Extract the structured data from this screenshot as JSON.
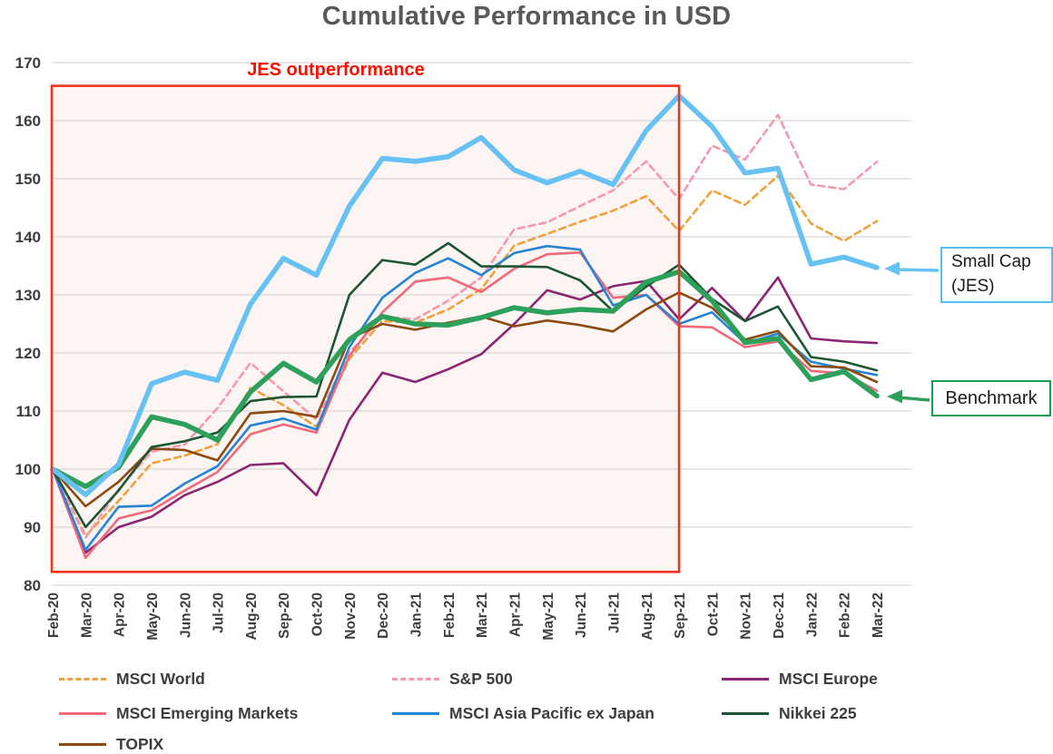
{
  "title": "Cumulative Performance in USD",
  "annotations": {
    "outperformance_label": "JES outperformance",
    "small_cap_label": "Small Cap (JES)",
    "benchmark_label": "Benchmark"
  },
  "colors": {
    "title_text": "#595959",
    "axis_text": "#3d3d3d",
    "gridline": "#d8d8d8",
    "annotation_red": "#fe1000",
    "small_cap_accent": "#55bef4",
    "benchmark_accent": "#179c51"
  },
  "chart_data": {
    "type": "line",
    "title": "Cumulative Performance in USD",
    "xlabel": "",
    "ylabel": "",
    "ylim": [
      80,
      170
    ],
    "yticks": [
      80,
      90,
      100,
      110,
      120,
      130,
      140,
      150,
      160,
      170
    ],
    "grid": true,
    "legend_position": "bottom",
    "x_labels": [
      "Feb-20",
      "Mar-20",
      "Apr-20",
      "May-20",
      "Jun-20",
      "Jul-20",
      "Aug-20",
      "Sep-20",
      "Oct-20",
      "Nov-20",
      "Dec-20",
      "Jan-21",
      "Feb-21",
      "Mar-21",
      "Apr-21",
      "May-21",
      "Jun-21",
      "Jul-21",
      "Aug-21",
      "Sep-21",
      "Oct-21",
      "Nov-21",
      "Dec-21",
      "Jan-22",
      "Feb-22",
      "Mar-22"
    ],
    "highlight_region": {
      "label": "JES outperformance",
      "x_start": "Feb-20",
      "x_end": "Sep-21",
      "y_min": 82.3,
      "y_max": 166,
      "border_color": "#f5321d",
      "fill_color": "#f8e8e4",
      "fill_opacity": 0.45
    },
    "draw_order": [
      0,
      1,
      2,
      3,
      4,
      6,
      5,
      8,
      7
    ],
    "series": [
      {
        "name": "MSCI World",
        "color": "#f0a13c",
        "dash": true,
        "width": 2.6,
        "in_legend": true,
        "values": [
          100,
          88.5,
          94.5,
          101,
          102.3,
          104.3,
          114,
          111,
          107.3,
          119,
          125.5,
          125.2,
          127.5,
          131,
          138.5,
          140.5,
          142.6,
          144.5,
          147,
          141,
          148,
          145.5,
          150.5,
          142.3,
          139.3,
          142.7
        ]
      },
      {
        "name": "S&P 500",
        "color": "#f799ae",
        "dash": true,
        "width": 2.6,
        "in_legend": true,
        "values": [
          100,
          88.2,
          96.5,
          103,
          104.2,
          110.5,
          118.3,
          113.4,
          108.5,
          120,
          126.3,
          125.8,
          129,
          133,
          141.3,
          142.5,
          145.3,
          148,
          153,
          146.5,
          155.7,
          153.3,
          161,
          149,
          148.2,
          152.9
        ]
      },
      {
        "name": "MSCI Europe",
        "color": "#8b2574",
        "dash": false,
        "width": 2.6,
        "in_legend": true,
        "values": [
          100,
          85.6,
          90,
          91.8,
          95.5,
          97.8,
          100.7,
          101,
          95.5,
          108.5,
          116.6,
          115,
          117.2,
          119.8,
          125,
          130.8,
          129.2,
          131.5,
          132.4,
          125.8,
          131.2,
          125.5,
          133,
          122.5,
          122,
          121.7
        ]
      },
      {
        "name": "MSCI Emerging Markets",
        "color": "#f3697b",
        "dash": false,
        "width": 2.6,
        "in_legend": true,
        "values": [
          100,
          84.7,
          91.5,
          92.9,
          96.3,
          99.5,
          106,
          107.7,
          106.3,
          119.5,
          127,
          132.3,
          133,
          130.5,
          134.5,
          137,
          137.3,
          129.5,
          130,
          124.6,
          124.4,
          121,
          122,
          116.9,
          116.5,
          113.5
        ]
      },
      {
        "name": "MSCI Asia Pacific ex Japan",
        "color": "#2584d4",
        "dash": false,
        "width": 2.6,
        "in_legend": true,
        "values": [
          100,
          86.1,
          93.5,
          93.7,
          97.5,
          100.5,
          107.5,
          108.7,
          106.8,
          121,
          129.5,
          133.8,
          136.3,
          133.4,
          137.2,
          138.4,
          137.8,
          128.2,
          130,
          125,
          127,
          121.7,
          123.3,
          118.5,
          117.3,
          116.2
        ]
      },
      {
        "name": "Nikkei 225",
        "color": "#1c5633",
        "dash": false,
        "width": 2.6,
        "in_legend": true,
        "values": [
          100,
          90,
          96.3,
          103.8,
          104.8,
          106.3,
          111.7,
          112.4,
          112.5,
          130,
          136,
          135.2,
          138.9,
          134.9,
          134.9,
          134.8,
          132.5,
          127.2,
          131.4,
          135.2,
          129.3,
          125.5,
          128,
          119.3,
          118.5,
          117
        ]
      },
      {
        "name": "TOPIX",
        "color": "#8c4a10",
        "dash": false,
        "width": 2.6,
        "in_legend": true,
        "values": [
          100,
          93.6,
          97.8,
          103.5,
          103.3,
          101.5,
          109.6,
          110,
          109,
          122.5,
          125,
          124,
          125.2,
          126.3,
          124.6,
          125.6,
          124.8,
          123.7,
          127.5,
          130.4,
          127.8,
          122.3,
          123.8,
          117.7,
          117.5,
          115
        ]
      },
      {
        "name": "Small Cap (JES)",
        "color": "#67c1f2",
        "dash": false,
        "width": 5.6,
        "in_legend": false,
        "values": [
          100,
          95.6,
          100.8,
          114.7,
          116.7,
          115.3,
          128.4,
          136.3,
          133.4,
          145.3,
          153.5,
          153,
          153.8,
          157.1,
          151.5,
          149.3,
          151.3,
          149,
          158.3,
          164.3,
          159,
          151,
          151.8,
          135.3,
          136.5,
          134.7
        ]
      },
      {
        "name": "Benchmark",
        "color": "#2da05c",
        "dash": false,
        "width": 5.6,
        "in_legend": false,
        "values": [
          100,
          97,
          100.3,
          109,
          107.7,
          105,
          113.3,
          118.2,
          115,
          122.3,
          126.3,
          125,
          124.8,
          126.1,
          127.8,
          126.9,
          127.5,
          127.2,
          132.2,
          134,
          129,
          121.8,
          122.5,
          115.4,
          116.8,
          112.6
        ]
      }
    ]
  }
}
